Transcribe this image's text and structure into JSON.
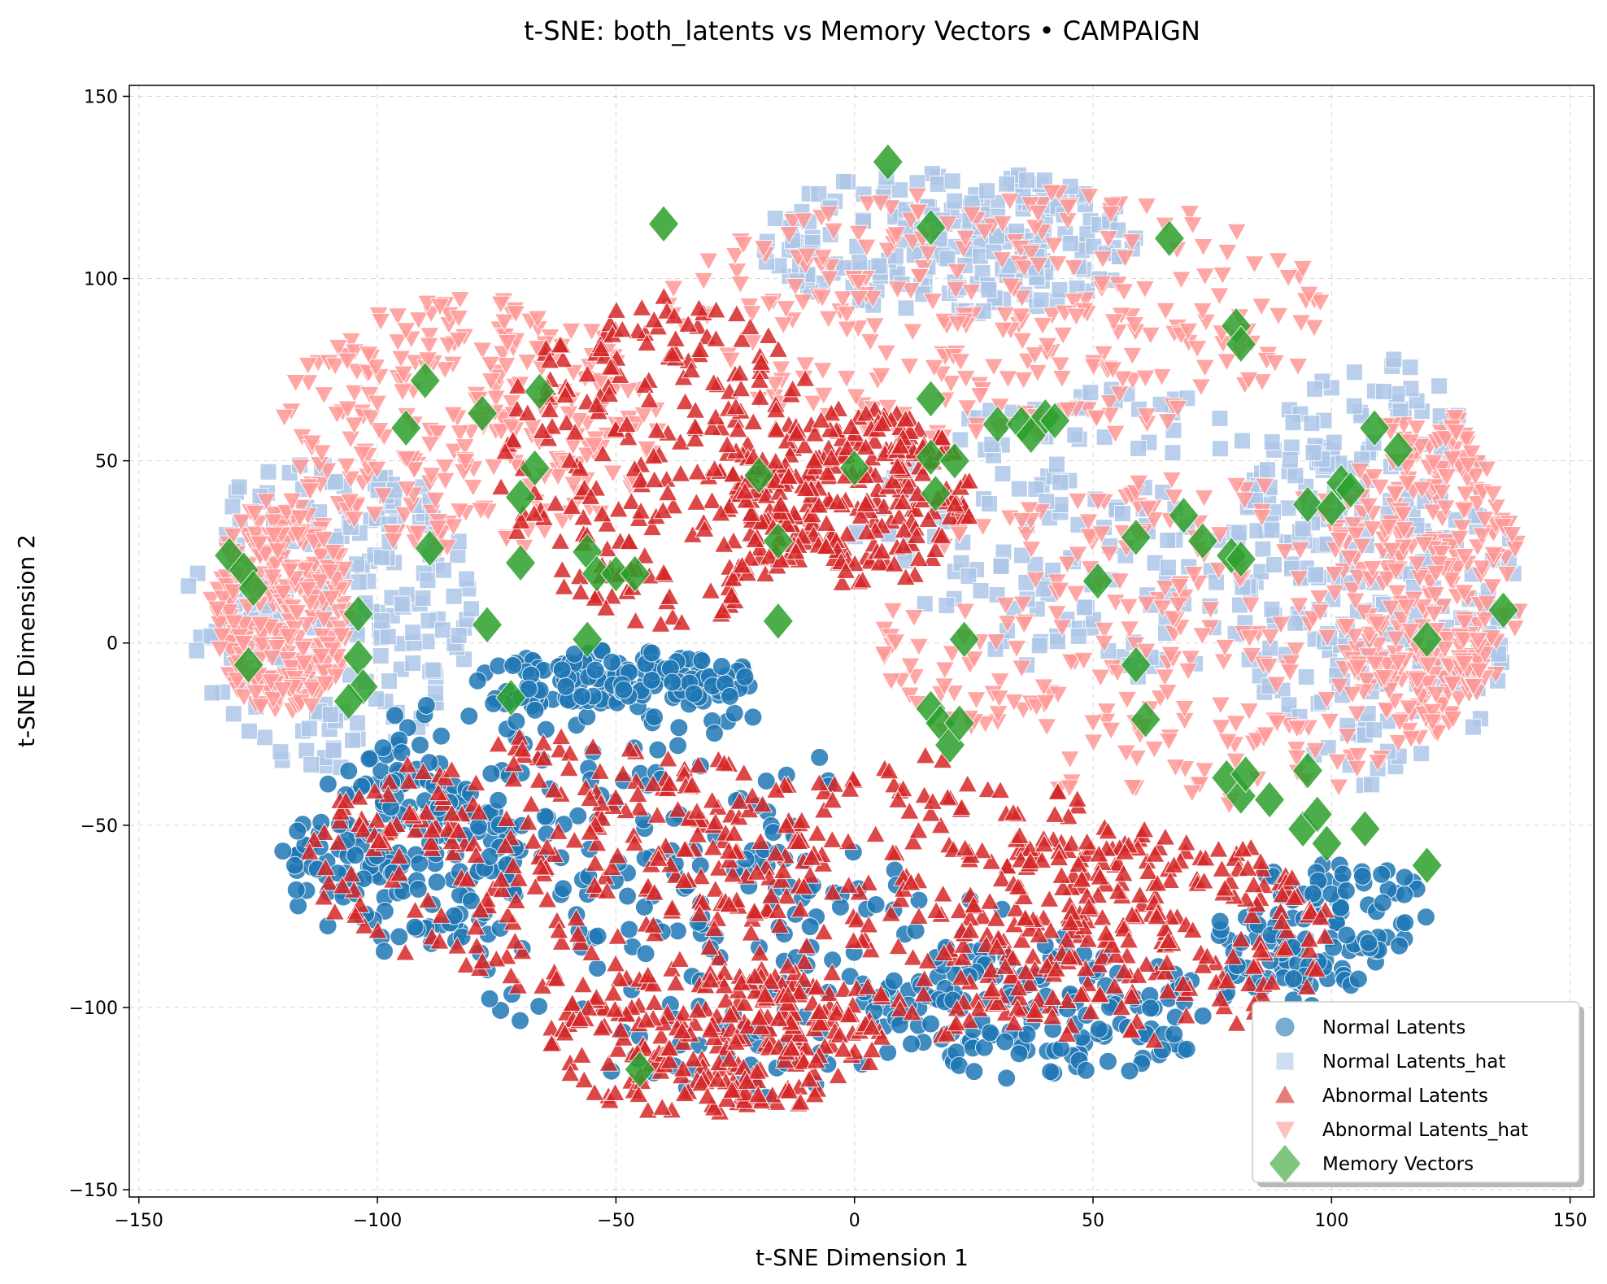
{
  "chart_data": {
    "type": "scatter",
    "title": "t-SNE: both_latents vs Memory Vectors • CAMPAIGN",
    "xlabel": "t-SNE Dimension 1",
    "ylabel": "t-SNE Dimension 2",
    "xlim": [
      -152,
      155
    ],
    "ylim": [
      -152,
      153
    ],
    "xticks": [
      -150,
      -100,
      -50,
      0,
      50,
      100,
      150
    ],
    "yticks": [
      -150,
      -100,
      -50,
      0,
      50,
      100,
      150
    ],
    "xtick_labels": [
      "−150",
      "−100",
      "−50",
      "0",
      "50",
      "100",
      "150"
    ],
    "ytick_labels": [
      "−150",
      "−100",
      "−50",
      "0",
      "50",
      "100",
      "150"
    ],
    "grid": true,
    "legend_position": "lower-right",
    "series": [
      {
        "name": "Normal Latents",
        "marker": "circle",
        "color": "#1f77b4",
        "note_regions": "dense in lower-left half",
        "regions": [
          {
            "cx": -60,
            "cy": -40,
            "rx": 55,
            "ry": 30
          },
          {
            "cx": -95,
            "cy": -60,
            "rx": 25,
            "ry": 25
          },
          {
            "cx": -20,
            "cy": -90,
            "rx": 60,
            "ry": 35
          },
          {
            "cx": 40,
            "cy": -100,
            "rx": 40,
            "ry": 20
          },
          {
            "cx": -50,
            "cy": -10,
            "rx": 30,
            "ry": 8
          },
          {
            "cx": 100,
            "cy": -80,
            "rx": 25,
            "ry": 20
          }
        ]
      },
      {
        "name": "Normal Latents_hat",
        "marker": "square",
        "color": "#aec7e8",
        "regions": [
          {
            "cx": -110,
            "cy": 10,
            "rx": 30,
            "ry": 45
          },
          {
            "cx": 60,
            "cy": 30,
            "rx": 60,
            "ry": 40
          },
          {
            "cx": 110,
            "cy": 20,
            "rx": 30,
            "ry": 60
          },
          {
            "cx": 20,
            "cy": 110,
            "rx": 40,
            "ry": 20
          }
        ]
      },
      {
        "name": "Abnormal Latents",
        "marker": "triangle-up",
        "color": "#d62728",
        "regions": [
          {
            "cx": -40,
            "cy": 50,
            "rx": 35,
            "ry": 45
          },
          {
            "cx": 0,
            "cy": 40,
            "rx": 25,
            "ry": 25
          },
          {
            "cx": -60,
            "cy": -60,
            "rx": 55,
            "ry": 35
          },
          {
            "cx": 10,
            "cy": -70,
            "rx": 55,
            "ry": 40
          },
          {
            "cx": 60,
            "cy": -80,
            "rx": 40,
            "ry": 30
          },
          {
            "cx": -30,
            "cy": -110,
            "rx": 35,
            "ry": 20
          }
        ]
      },
      {
        "name": "Abnormal Latents_hat",
        "marker": "triangle-down",
        "color": "#ff9896",
        "regions": [
          {
            "cx": 30,
            "cy": 90,
            "rx": 70,
            "ry": 35
          },
          {
            "cx": -80,
            "cy": 60,
            "rx": 40,
            "ry": 35
          },
          {
            "cx": 70,
            "cy": 0,
            "rx": 65,
            "ry": 45
          },
          {
            "cx": 120,
            "cy": 20,
            "rx": 20,
            "ry": 45
          },
          {
            "cx": -120,
            "cy": 10,
            "rx": 15,
            "ry": 30
          }
        ]
      },
      {
        "name": "Memory Vectors",
        "marker": "diamond",
        "color": "#2ca02c",
        "x": [
          7,
          -40,
          16,
          66,
          80,
          81,
          109,
          114,
          -90,
          -94,
          -78,
          -66,
          -67,
          -89,
          -70,
          -70,
          -20,
          -16,
          0,
          16,
          21,
          16,
          30,
          35,
          40,
          42,
          37,
          17,
          69,
          73,
          79,
          81,
          102,
          104,
          95,
          100,
          59,
          -131,
          -128,
          -126,
          -104,
          -104,
          -103,
          -106,
          -72,
          -77,
          -56,
          -54,
          -56,
          -50,
          -46,
          -16,
          23,
          -127,
          51,
          59,
          61,
          120,
          136,
          16,
          18,
          20,
          22,
          78,
          81,
          82,
          87,
          95,
          94,
          97,
          99,
          107,
          120,
          -45
        ],
        "y": [
          132,
          115,
          114,
          111,
          87,
          82,
          59,
          53,
          72,
          59,
          63,
          69,
          48,
          26,
          40,
          22,
          46,
          28,
          48,
          51,
          50,
          67,
          60,
          60,
          62,
          61,
          57,
          41,
          35,
          28,
          24,
          23,
          44,
          42,
          38,
          37,
          29,
          24,
          20,
          15,
          8,
          -4,
          -12,
          -16,
          -15,
          5,
          25,
          19,
          1,
          19,
          19,
          6,
          1,
          -6,
          17,
          -6,
          -21,
          1,
          9,
          -18,
          -22,
          -28,
          -22,
          -37,
          -42,
          -36,
          -43,
          -35,
          -51,
          -47,
          -55,
          -51,
          -61,
          -117
        ]
      }
    ]
  }
}
